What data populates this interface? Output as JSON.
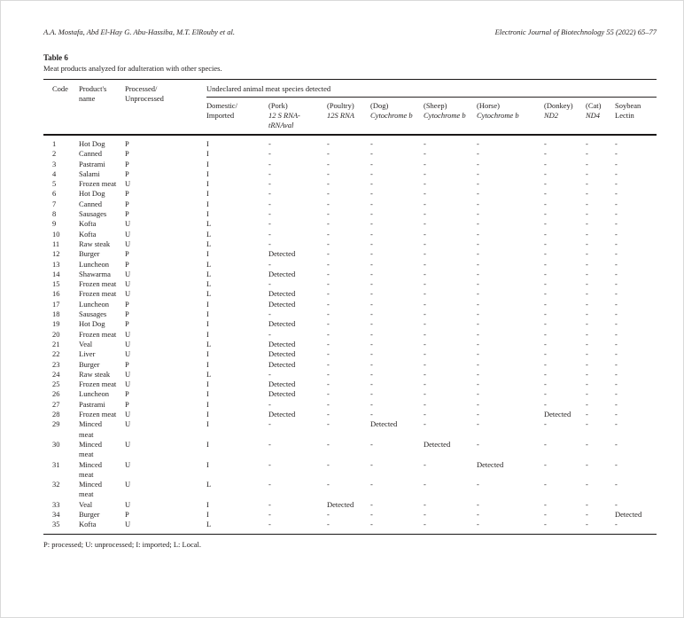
{
  "page": {
    "authors": "A.A. Mostafa, Abd El-Hay G. Abu-Hassiba, M.T. ElRouby et al.",
    "journal": "Electronic Journal of Biotechnology 55 (2022) 65–77"
  },
  "table": {
    "label": "Table 6",
    "caption": "Meat products analyzed for adulteration with other species.",
    "footnote": "P: processed; U: unprocessed; I: imported; L: Local.",
    "header": {
      "code": "Code",
      "product": "Product's name",
      "processed_line1": "Processed/",
      "processed_line2": "Unprocessed",
      "span_label": "Undeclared animal meat species detected",
      "subcolumns": [
        {
          "line1": "Domestic/",
          "line2": "Imported",
          "line2_italic": false
        },
        {
          "line1": "(Pork)",
          "line2": "12 S RNA-tRNAval",
          "line2_italic": true
        },
        {
          "line1": "(Poultry)",
          "line2": "12S RNA",
          "line2_italic": true
        },
        {
          "line1": "(Dog)",
          "line2": "Cytochrome b",
          "line2_italic": true
        },
        {
          "line1": "(Sheep)",
          "line2": "Cytochrome b",
          "line2_italic": true
        },
        {
          "line1": "(Horse)",
          "line2": "Cytochrome b",
          "line2_italic": true
        },
        {
          "line1": "(Donkey)",
          "line2": "ND2",
          "line2_italic": true
        },
        {
          "line1": "(Cat)",
          "line2": "ND4",
          "line2_italic": true
        },
        {
          "line1": "Soybean",
          "line2": "Lectin",
          "line2_italic": false
        }
      ]
    },
    "rows": [
      [
        "1",
        "Hot Dog",
        "P",
        "I",
        "-",
        "-",
        "-",
        "-",
        "-",
        "-",
        "-",
        "-"
      ],
      [
        "2",
        "Canned",
        "P",
        "I",
        "-",
        "-",
        "-",
        "-",
        "-",
        "-",
        "-",
        "-"
      ],
      [
        "3",
        "Pastrami",
        "P",
        "I",
        "-",
        "-",
        "-",
        "-",
        "-",
        "-",
        "-",
        "-"
      ],
      [
        "4",
        "Salami",
        "P",
        "I",
        "-",
        "-",
        "-",
        "-",
        "-",
        "-",
        "-",
        "-"
      ],
      [
        "5",
        "Frozen meat",
        "U",
        "I",
        "-",
        "-",
        "-",
        "-",
        "-",
        "-",
        "-",
        "-"
      ],
      [
        "6",
        "Hot Dog",
        "P",
        "I",
        "-",
        "-",
        "-",
        "-",
        "-",
        "-",
        "-",
        "-"
      ],
      [
        "7",
        "Canned",
        "P",
        "I",
        "-",
        "-",
        "-",
        "-",
        "-",
        "-",
        "-",
        "-"
      ],
      [
        "8",
        "Sausages",
        "P",
        "I",
        "-",
        "-",
        "-",
        "-",
        "-",
        "-",
        "-",
        "-"
      ],
      [
        "9",
        "Kofta",
        "U",
        "L",
        "-",
        "-",
        "-",
        "-",
        "-",
        "-",
        "-",
        "-"
      ],
      [
        "10",
        "Kofta",
        "U",
        "L",
        "-",
        "-",
        "-",
        "-",
        "-",
        "-",
        "-",
        "-"
      ],
      [
        "11",
        "Raw steak",
        "U",
        "L",
        "-",
        "-",
        "-",
        "-",
        "-",
        "-",
        "-",
        "-"
      ],
      [
        "12",
        "Burger",
        "P",
        "I",
        "Detected",
        "-",
        "-",
        "-",
        "-",
        "-",
        "-",
        "-"
      ],
      [
        "13",
        "Luncheon",
        "P",
        "L",
        "-",
        "-",
        "-",
        "-",
        "-",
        "-",
        "-",
        "-"
      ],
      [
        "14",
        "Shawarma",
        "U",
        "L",
        "Detected",
        "-",
        "-",
        "-",
        "-",
        "-",
        "-",
        "-"
      ],
      [
        "15",
        "Frozen meat",
        "U",
        "L",
        "-",
        "-",
        "-",
        "-",
        "-",
        "-",
        "-",
        "-"
      ],
      [
        "16",
        "Frozen meat",
        "U",
        "L",
        "Detected",
        "-",
        "-",
        "-",
        "-",
        "-",
        "-",
        "-"
      ],
      [
        "17",
        "Luncheon",
        "P",
        "I",
        "Detected",
        "-",
        "-",
        "-",
        "-",
        "-",
        "-",
        "-"
      ],
      [
        "18",
        "Sausages",
        "P",
        "I",
        "-",
        "-",
        "-",
        "-",
        "-",
        "-",
        "-",
        "-"
      ],
      [
        "19",
        "Hot Dog",
        "P",
        "I",
        "Detected",
        "-",
        "-",
        "-",
        "-",
        "-",
        "-",
        "-"
      ],
      [
        "20",
        "Frozen meat",
        "U",
        "I",
        "-",
        "-",
        "-",
        "-",
        "-",
        "-",
        "-",
        "-"
      ],
      [
        "21",
        "Veal",
        "U",
        "L",
        "Detected",
        "-",
        "-",
        "-",
        "-",
        "-",
        "-",
        "-"
      ],
      [
        "22",
        "Liver",
        "U",
        "I",
        "Detected",
        "-",
        "-",
        "-",
        "-",
        "-",
        "-",
        "-"
      ],
      [
        "23",
        "Burger",
        "P",
        "I",
        "Detected",
        "-",
        "-",
        "-",
        "-",
        "-",
        "-",
        "-"
      ],
      [
        "24",
        "Raw steak",
        "U",
        "L",
        "-",
        "-",
        "-",
        "-",
        "-",
        "-",
        "-",
        "-"
      ],
      [
        "25",
        "Frozen meat",
        "U",
        "I",
        "Detected",
        "-",
        "-",
        "-",
        "-",
        "-",
        "-",
        "-"
      ],
      [
        "26",
        "Luncheon",
        "P",
        "I",
        "Detected",
        "-",
        "-",
        "-",
        "-",
        "-",
        "-",
        "-"
      ],
      [
        "27",
        "Pastrami",
        "P",
        "I",
        "-",
        "-",
        "-",
        "-",
        "-",
        "-",
        "-",
        "-"
      ],
      [
        "28",
        "Frozen meat",
        "U",
        "I",
        "Detected",
        "-",
        "-",
        "-",
        "-",
        "Detected",
        "-",
        "-"
      ],
      [
        "29",
        "Minced meat",
        "U",
        "I",
        "-",
        "-",
        "Detected",
        "-",
        "-",
        "-",
        "-",
        "-"
      ],
      [
        "30",
        "Minced meat",
        "U",
        "I",
        "-",
        "-",
        "-",
        "Detected",
        "-",
        "-",
        "-",
        "-"
      ],
      [
        "31",
        "Minced meat",
        "U",
        "I",
        "-",
        "-",
        "-",
        "-",
        "Detected",
        "-",
        "-",
        "-"
      ],
      [
        "32",
        "Minced meat",
        "U",
        "L",
        "-",
        "-",
        "-",
        "-",
        "-",
        "-",
        "-",
        "-"
      ],
      [
        "33",
        "Veal",
        "U",
        "I",
        "-",
        "Detected",
        "-",
        "-",
        "-",
        "-",
        "-",
        "-"
      ],
      [
        "34",
        "Burger",
        "P",
        "I",
        "-",
        "-",
        "-",
        "-",
        "-",
        "-",
        "-",
        "Detected"
      ],
      [
        "35",
        "Kofta",
        "U",
        "L",
        "-",
        "-",
        "-",
        "-",
        "-",
        "-",
        "-",
        "-"
      ]
    ]
  }
}
